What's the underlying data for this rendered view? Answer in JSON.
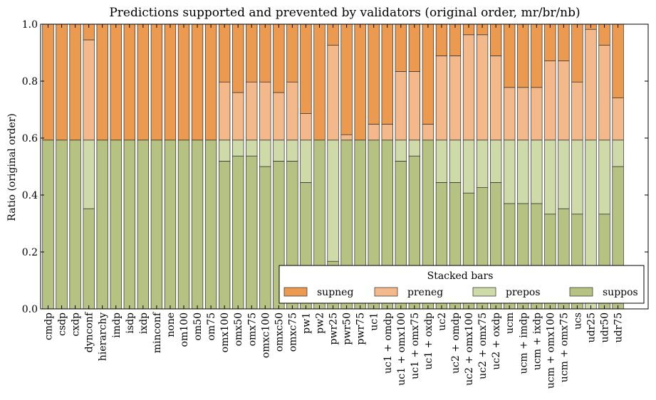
{
  "chart_data": {
    "type": "bar",
    "stacked": true,
    "title": "Predictions supported and prevented by validators (original order, mr/br/nb)",
    "xlabel": "",
    "ylabel": "Ratio (original order)",
    "ylim": [
      0,
      1.0
    ],
    "yticks": [
      "0.0",
      "0.2",
      "0.4",
      "0.6",
      "0.8",
      "1.0"
    ],
    "grid": false,
    "categories": [
      "cmdp",
      "csdp",
      "cxdp",
      "dynconf",
      "hierarchy",
      "imdp",
      "isdp",
      "ixdp",
      "minconf",
      "none",
      "om100",
      "om50",
      "om75",
      "omx100",
      "omx50",
      "omx75",
      "omxc100",
      "omxc50",
      "omxc75",
      "pw1",
      "pw2",
      "pwr25",
      "pwr50",
      "pwr75",
      "uc1",
      "uc1 + omdp",
      "uc1 + omx100",
      "uc1 + omx75",
      "uc1 + oxdp",
      "uc2",
      "uc2 + omdp",
      "uc2 + omx100",
      "uc2 + omx75",
      "uc2 + oxdp",
      "ucm",
      "ucm + imdp",
      "ucm + ixdp",
      "ucm + omx100",
      "ucm + omx75",
      "ucs",
      "udr25",
      "udr50",
      "udr75"
    ],
    "series": [
      {
        "name": "suppos",
        "color": "#b5c282",
        "values": [
          0.593,
          0.593,
          0.593,
          0.352,
          0.593,
          0.593,
          0.593,
          0.593,
          0.593,
          0.593,
          0.593,
          0.593,
          0.593,
          0.519,
          0.537,
          0.537,
          0.5,
          0.519,
          0.519,
          0.444,
          0.593,
          0.167,
          0.593,
          0.593,
          0.593,
          0.593,
          0.519,
          0.537,
          0.593,
          0.444,
          0.444,
          0.407,
          0.426,
          0.444,
          0.37,
          0.37,
          0.37,
          0.333,
          0.352,
          0.333,
          0.0,
          0.333,
          0.5
        ]
      },
      {
        "name": "prepos",
        "color": "#cfdaa9",
        "values": [
          0.0,
          0.0,
          0.0,
          0.241,
          0.0,
          0.0,
          0.0,
          0.0,
          0.0,
          0.0,
          0.0,
          0.0,
          0.0,
          0.074,
          0.056,
          0.056,
          0.093,
          0.074,
          0.074,
          0.149,
          0.0,
          0.426,
          0.0,
          0.0,
          0.0,
          0.0,
          0.074,
          0.056,
          0.0,
          0.149,
          0.149,
          0.186,
          0.167,
          0.149,
          0.223,
          0.223,
          0.223,
          0.26,
          0.241,
          0.26,
          0.593,
          0.26,
          0.093
        ]
      },
      {
        "name": "preneg",
        "color": "#f3b98a",
        "values": [
          0.0,
          0.0,
          0.0,
          0.352,
          0.0,
          0.0,
          0.0,
          0.0,
          0.0,
          0.0,
          0.0,
          0.0,
          0.0,
          0.204,
          0.167,
          0.204,
          0.204,
          0.167,
          0.204,
          0.093,
          0.0,
          0.333,
          0.019,
          0.0,
          0.056,
          0.056,
          0.241,
          0.241,
          0.056,
          0.296,
          0.296,
          0.37,
          0.37,
          0.296,
          0.185,
          0.185,
          0.185,
          0.278,
          0.278,
          0.204,
          0.389,
          0.333,
          0.148
        ]
      },
      {
        "name": "supneg",
        "color": "#ec9a50",
        "values": [
          0.407,
          0.407,
          0.407,
          0.055,
          0.407,
          0.407,
          0.407,
          0.407,
          0.407,
          0.407,
          0.407,
          0.407,
          0.407,
          0.203,
          0.24,
          0.203,
          0.203,
          0.24,
          0.203,
          0.314,
          0.407,
          0.074,
          0.388,
          0.407,
          0.351,
          0.351,
          0.166,
          0.166,
          0.351,
          0.111,
          0.111,
          0.037,
          0.037,
          0.111,
          0.222,
          0.222,
          0.222,
          0.129,
          0.129,
          0.203,
          0.018,
          0.074,
          0.259
        ]
      }
    ],
    "legend": {
      "title": "Stacked bars",
      "placement": "lower-right",
      "entries": [
        "supneg",
        "preneg",
        "prepos",
        "suppos"
      ]
    }
  }
}
